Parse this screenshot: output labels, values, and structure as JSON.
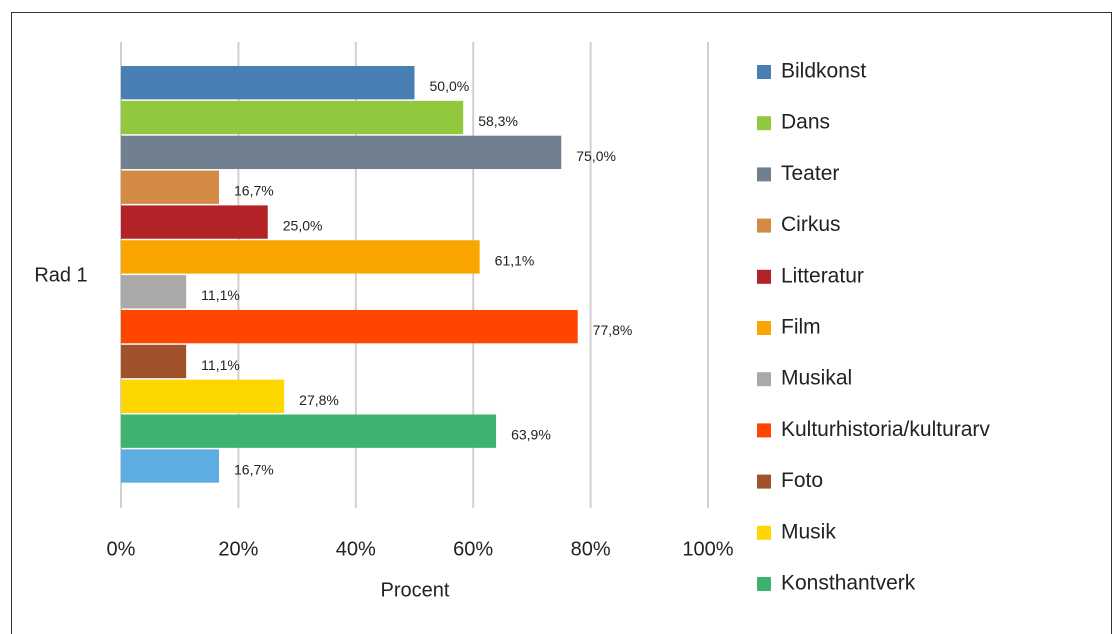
{
  "chart_data": {
    "type": "bar",
    "orientation": "horizontal",
    "categories": [
      "Rad 1"
    ],
    "xlabel": "Procent",
    "xlim": [
      0,
      100
    ],
    "xticks": [
      {
        "value": 0,
        "label": "0%"
      },
      {
        "value": 20,
        "label": "20%"
      },
      {
        "value": 40,
        "label": "40%"
      },
      {
        "value": 60,
        "label": "60%"
      },
      {
        "value": 80,
        "label": "80%"
      },
      {
        "value": 100,
        "label": "100%"
      }
    ],
    "grid": true,
    "legend": "right",
    "series": [
      {
        "name": "Bildkonst",
        "color": "#4a7fb5",
        "values": [
          50.0
        ],
        "value_labels": [
          "50,0%"
        ]
      },
      {
        "name": "Dans",
        "color": "#92c83e",
        "values": [
          58.3
        ],
        "value_labels": [
          "58,3%"
        ]
      },
      {
        "name": "Teater",
        "color": "#708090",
        "values": [
          75.0
        ],
        "value_labels": [
          "75,0%"
        ]
      },
      {
        "name": "Cirkus",
        "color": "#d38a44",
        "values": [
          16.7
        ],
        "value_labels": [
          "16,7%"
        ]
      },
      {
        "name": "Litteratur",
        "color": "#b22226",
        "values": [
          25.0
        ],
        "value_labels": [
          "25,0%"
        ]
      },
      {
        "name": "Film",
        "color": "#fba500",
        "values": [
          61.1
        ],
        "value_labels": [
          "61,1%"
        ]
      },
      {
        "name": "Musikal",
        "color": "#a9a9a9",
        "values": [
          11.1
        ],
        "value_labels": [
          "11,1%"
        ]
      },
      {
        "name": "Kulturhistoria/kulturarv",
        "color": "#ff4500",
        "values": [
          77.8
        ],
        "value_labels": [
          "77,8%"
        ]
      },
      {
        "name": "Foto",
        "color": "#a0522d",
        "values": [
          11.1
        ],
        "value_labels": [
          "11,1%"
        ]
      },
      {
        "name": "Musik",
        "color": "#ffd700",
        "values": [
          27.8
        ],
        "value_labels": [
          "27,8%"
        ]
      },
      {
        "name": "Konsthantverk",
        "color": "#3cb371",
        "values": [
          63.9
        ],
        "value_labels": [
          "63,9%"
        ]
      },
      {
        "name": null,
        "color": "#5dade2",
        "values": [
          16.7
        ],
        "value_labels": [
          "16,7%"
        ]
      }
    ]
  }
}
